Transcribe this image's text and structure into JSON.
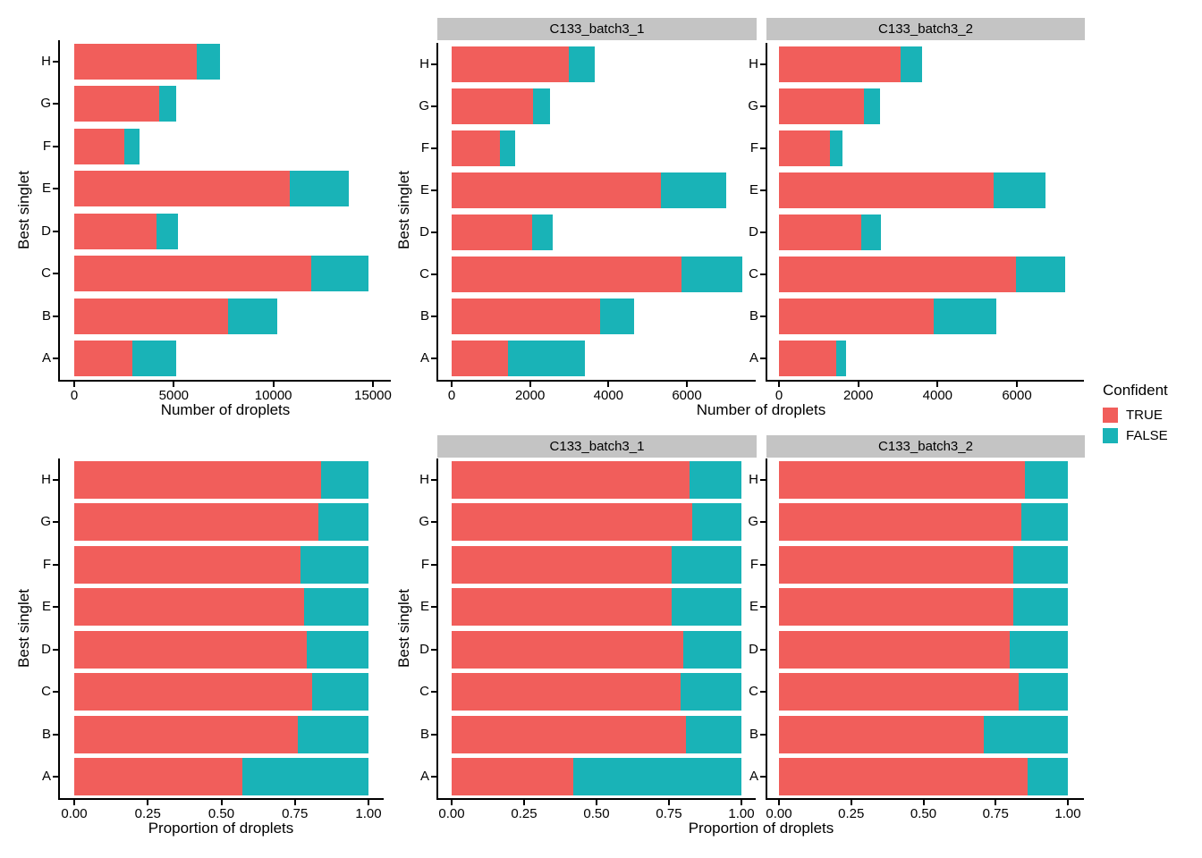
{
  "colors": {
    "TRUE": "#F15E5B",
    "FALSE": "#19B3B7",
    "strip_background": "#C4C4C4",
    "axis_line": "#000000"
  },
  "legend": {
    "title": "Confident",
    "items": [
      {
        "label": "TRUE",
        "color": "#F15E5B"
      },
      {
        "label": "FALSE",
        "color": "#19B3B7"
      }
    ]
  },
  "chart_data": [
    {
      "id": "counts-overall",
      "type": "bar",
      "orientation": "horizontal",
      "stacked": true,
      "facet_label": null,
      "xlabel": "Number of droplets",
      "ylabel": "Best singlet",
      "categories": [
        "H",
        "G",
        "F",
        "E",
        "D",
        "C",
        "B",
        "A"
      ],
      "series": [
        {
          "name": "TRUE",
          "values": [
            6150,
            4250,
            2520,
            10840,
            4110,
            11900,
            7730,
            2900
          ]
        },
        {
          "name": "FALSE",
          "values": [
            1150,
            850,
            750,
            2970,
            1100,
            2860,
            2480,
            2200
          ]
        }
      ],
      "xticks": [
        0,
        5000,
        10000,
        15000
      ],
      "xtick_labels": [
        "0",
        "5000",
        "10000",
        "15000"
      ],
      "xlim": [
        0,
        15800
      ],
      "grid": false
    },
    {
      "id": "counts-b1",
      "type": "bar",
      "orientation": "horizontal",
      "stacked": true,
      "facet_label": "C133_batch3_1",
      "xlabel": "Number of droplets",
      "ylabel": "Best singlet",
      "categories": [
        "H",
        "G",
        "F",
        "E",
        "D",
        "C",
        "B",
        "A"
      ],
      "series": [
        {
          "name": "TRUE",
          "values": [
            2990,
            2080,
            1240,
            5330,
            2060,
            5860,
            3780,
            1440
          ]
        },
        {
          "name": "FALSE",
          "values": [
            670,
            420,
            380,
            1670,
            510,
            1560,
            870,
            1960
          ]
        }
      ],
      "xticks": [
        0,
        2000,
        4000,
        6000
      ],
      "xtick_labels": [
        "0",
        "2000",
        "4000",
        "6000"
      ],
      "xlim": [
        0,
        7760
      ],
      "grid": false
    },
    {
      "id": "counts-b2",
      "type": "bar",
      "orientation": "horizontal",
      "stacked": true,
      "facet_label": "C133_batch3_2",
      "xlabel": "Number of droplets",
      "ylabel": "Best singlet",
      "categories": [
        "H",
        "G",
        "F",
        "E",
        "D",
        "C",
        "B",
        "A"
      ],
      "series": [
        {
          "name": "TRUE",
          "values": [
            3070,
            2140,
            1280,
            5410,
            2070,
            5980,
            3900,
            1450
          ]
        },
        {
          "name": "FALSE",
          "values": [
            545,
            400,
            320,
            1310,
            510,
            1240,
            1590,
            240
          ]
        }
      ],
      "xticks": [
        0,
        2000,
        4000,
        6000
      ],
      "xtick_labels": [
        "0",
        "2000",
        "4000",
        "6000"
      ],
      "xlim": [
        0,
        7760
      ],
      "grid": false
    },
    {
      "id": "props-overall",
      "type": "bar",
      "orientation": "horizontal",
      "stacked": true,
      "facet_label": null,
      "xlabel": "Proportion of droplets",
      "ylabel": "Best singlet",
      "categories": [
        "H",
        "G",
        "F",
        "E",
        "D",
        "C",
        "B",
        "A"
      ],
      "series": [
        {
          "name": "TRUE",
          "values": [
            0.84,
            0.83,
            0.77,
            0.78,
            0.79,
            0.81,
            0.76,
            0.57
          ]
        },
        {
          "name": "FALSE",
          "values": [
            0.16,
            0.17,
            0.23,
            0.22,
            0.21,
            0.19,
            0.24,
            0.43
          ]
        }
      ],
      "xticks": [
        0,
        0.25,
        0.5,
        0.75,
        1
      ],
      "xtick_labels": [
        "0.00",
        "0.25",
        "0.50",
        "0.75",
        "1.00"
      ],
      "xlim": [
        0,
        1.05
      ],
      "grid": false
    },
    {
      "id": "props-b1",
      "type": "bar",
      "orientation": "horizontal",
      "stacked": true,
      "facet_label": "C133_batch3_1",
      "xlabel": "Proportion of droplets",
      "ylabel": "Best singlet",
      "categories": [
        "H",
        "G",
        "F",
        "E",
        "D",
        "C",
        "B",
        "A"
      ],
      "series": [
        {
          "name": "TRUE",
          "values": [
            0.82,
            0.83,
            0.76,
            0.76,
            0.8,
            0.79,
            0.81,
            0.42
          ]
        },
        {
          "name": "FALSE",
          "values": [
            0.18,
            0.17,
            0.24,
            0.24,
            0.2,
            0.21,
            0.19,
            0.58
          ]
        }
      ],
      "xticks": [
        0,
        0.25,
        0.5,
        0.75,
        1
      ],
      "xtick_labels": [
        "0.00",
        "0.25",
        "0.50",
        "0.75",
        "1.00"
      ],
      "xlim": [
        0,
        1.05
      ],
      "grid": false
    },
    {
      "id": "props-b2",
      "type": "bar",
      "orientation": "horizontal",
      "stacked": true,
      "facet_label": "C133_batch3_2",
      "xlabel": "Proportion of droplets",
      "ylabel": "Best singlet",
      "categories": [
        "H",
        "G",
        "F",
        "E",
        "D",
        "C",
        "B",
        "A"
      ],
      "series": [
        {
          "name": "TRUE",
          "values": [
            0.85,
            0.84,
            0.81,
            0.81,
            0.8,
            0.83,
            0.71,
            0.86
          ]
        },
        {
          "name": "FALSE",
          "values": [
            0.15,
            0.16,
            0.19,
            0.19,
            0.2,
            0.17,
            0.29,
            0.14
          ]
        }
      ],
      "xticks": [
        0,
        0.25,
        0.5,
        0.75,
        1
      ],
      "xtick_labels": [
        "0.00",
        "0.25",
        "0.50",
        "0.75",
        "1.00"
      ],
      "xlim": [
        0,
        1.05
      ],
      "grid": false
    }
  ]
}
